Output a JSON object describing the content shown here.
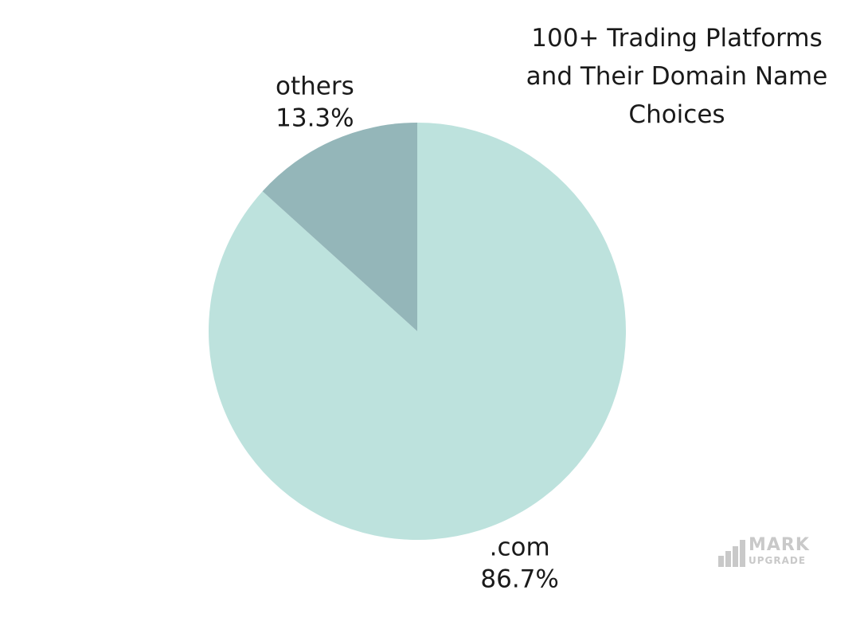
{
  "chart_data": {
    "type": "pie",
    "title": "100+ Trading Platforms\nand Their Domain Name\nChoices",
    "slices": [
      {
        "label": ".com",
        "value": 86.7,
        "value_label": "86.7%",
        "color": "#bde2dd"
      },
      {
        "label": "others",
        "value": 13.3,
        "value_label": "13.3%",
        "color": "#94b6b9"
      }
    ],
    "start_angle": "top (12 o'clock)",
    "direction": "clockwise",
    "legend": "none (labels outside slices)"
  },
  "watermark": {
    "line1": "MARK",
    "line2": "UPGRADE",
    "color": "#c9c9c9"
  }
}
